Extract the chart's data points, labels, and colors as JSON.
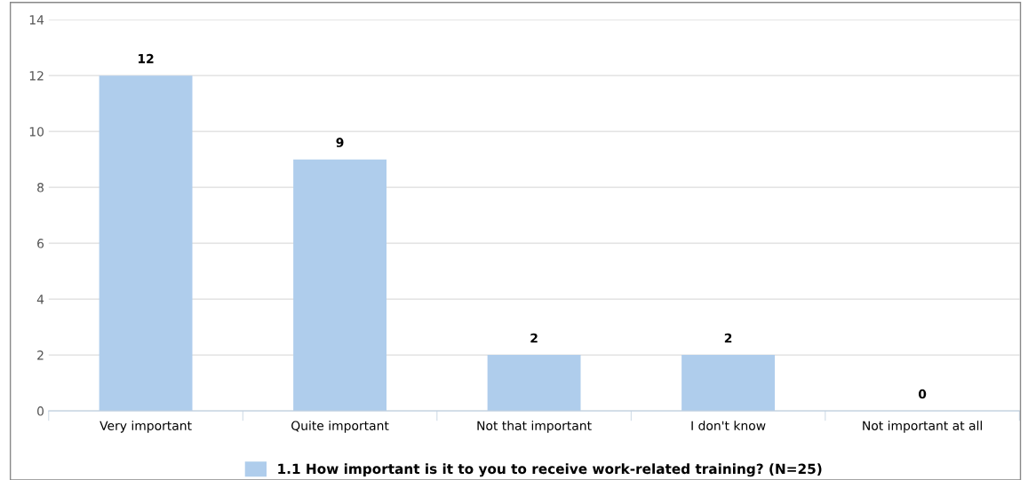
{
  "chart_data": {
    "type": "bar",
    "categories": [
      "Very important",
      "Quite important",
      "Not that important",
      "I don't know",
      "Not important at all"
    ],
    "series": [
      {
        "name": "1.1 How important is it to you to receive work-related training? (N=25)",
        "color": "#afcdec",
        "values": [
          12,
          9,
          2,
          2,
          0
        ]
      }
    ],
    "ylim": [
      0,
      14
    ],
    "yticks": [
      0,
      2,
      4,
      6,
      8,
      10,
      12,
      14
    ],
    "grid": "y",
    "legend": "bottom",
    "data_labels": true
  }
}
